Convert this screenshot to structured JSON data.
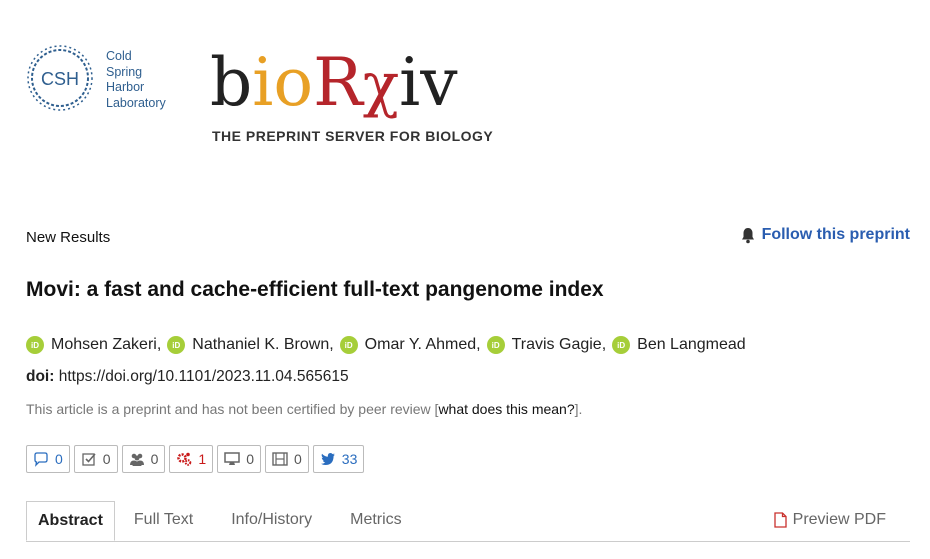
{
  "header": {
    "csh_logo_text": "CSH",
    "csh_lines": [
      "Cold",
      "Spring",
      "Harbor",
      "Laboratory"
    ],
    "site_logo": "bioRxiv",
    "tagline": "THE PREPRINT SERVER FOR BIOLOGY",
    "logo_colors": {
      "b": "#222222",
      "i": "#e8a025",
      "o": "#e8a025",
      "R": "#b5252b",
      "xiv": "#222222",
      "csh": "#2f5f8f"
    }
  },
  "article": {
    "type": "New Results",
    "follow_label": "Follow this preprint",
    "title": "Movi: a fast and cache-efficient full-text pangenome index",
    "authors": [
      "Mohsen Zakeri,",
      "Nathaniel K. Brown,",
      "Omar Y. Ahmed,",
      "Travis Gagie,",
      "Ben Langmead"
    ],
    "doi_label": "doi:",
    "doi_url": "https://doi.org/10.1101/2023.11.04.565615",
    "disclaimer_prefix": "This article is a preprint and has not been certified by peer review [",
    "disclaimer_link": "what does this mean?",
    "disclaimer_suffix": "]."
  },
  "badges": [
    {
      "icon": "comment-icon",
      "count": "0"
    },
    {
      "icon": "checkbox-icon",
      "count": "0"
    },
    {
      "icon": "users-icon",
      "count": "0"
    },
    {
      "icon": "altmetric-gears-icon",
      "count": "1"
    },
    {
      "icon": "monitor-icon",
      "count": "0"
    },
    {
      "icon": "film-icon",
      "count": "0"
    },
    {
      "icon": "twitter-icon",
      "count": "33"
    }
  ],
  "tabs": [
    {
      "label": "Abstract",
      "active": true
    },
    {
      "label": "Full Text"
    },
    {
      "label": "Info/History"
    },
    {
      "label": "Metrics"
    }
  ],
  "pdf_label": "Preview PDF"
}
